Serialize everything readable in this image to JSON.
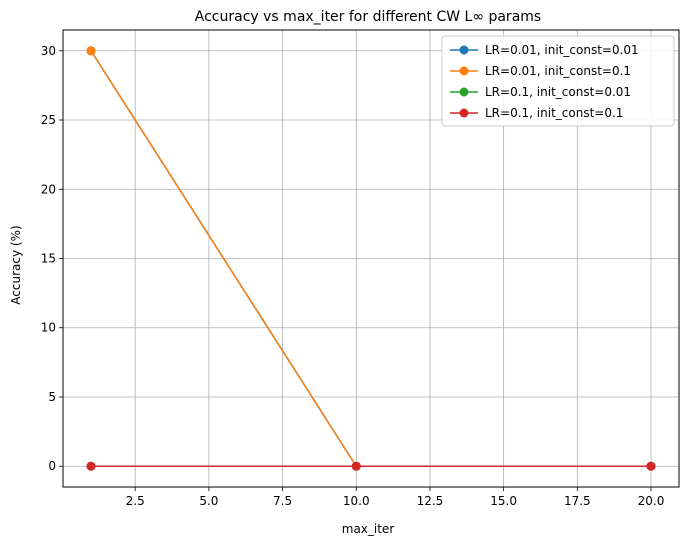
{
  "chart_data": {
    "type": "line",
    "title": "Accuracy vs max_iter for different CW L∞ params",
    "xlabel": "max_iter",
    "ylabel": "Accuracy (%)",
    "xlim": [
      0.05,
      20.95
    ],
    "ylim": [
      -1.5,
      31.5
    ],
    "xticks": [
      2.5,
      5.0,
      7.5,
      10.0,
      12.5,
      15.0,
      17.5,
      20.0
    ],
    "xtick_labels": [
      "2.5",
      "5.0",
      "7.5",
      "10.0",
      "12.5",
      "15.0",
      "17.5",
      "20.0"
    ],
    "yticks": [
      0,
      5,
      10,
      15,
      20,
      25,
      30
    ],
    "ytick_labels": [
      "0",
      "5",
      "10",
      "15",
      "20",
      "25",
      "30"
    ],
    "grid": true,
    "legend_position": "top-right",
    "x": [
      1,
      10,
      20
    ],
    "series": [
      {
        "name": "LR=0.01, init_const=0.01",
        "color": "#1f77b4",
        "values": [
          30,
          0,
          0
        ]
      },
      {
        "name": "LR=0.01, init_const=0.1",
        "color": "#ff7f0e",
        "values": [
          30,
          0,
          0
        ]
      },
      {
        "name": "LR=0.1, init_const=0.01",
        "color": "#2ca02c",
        "values": [
          0,
          0,
          0
        ]
      },
      {
        "name": "LR=0.1, init_const=0.1",
        "color": "#d62728",
        "values": [
          0,
          0,
          0
        ]
      }
    ]
  }
}
